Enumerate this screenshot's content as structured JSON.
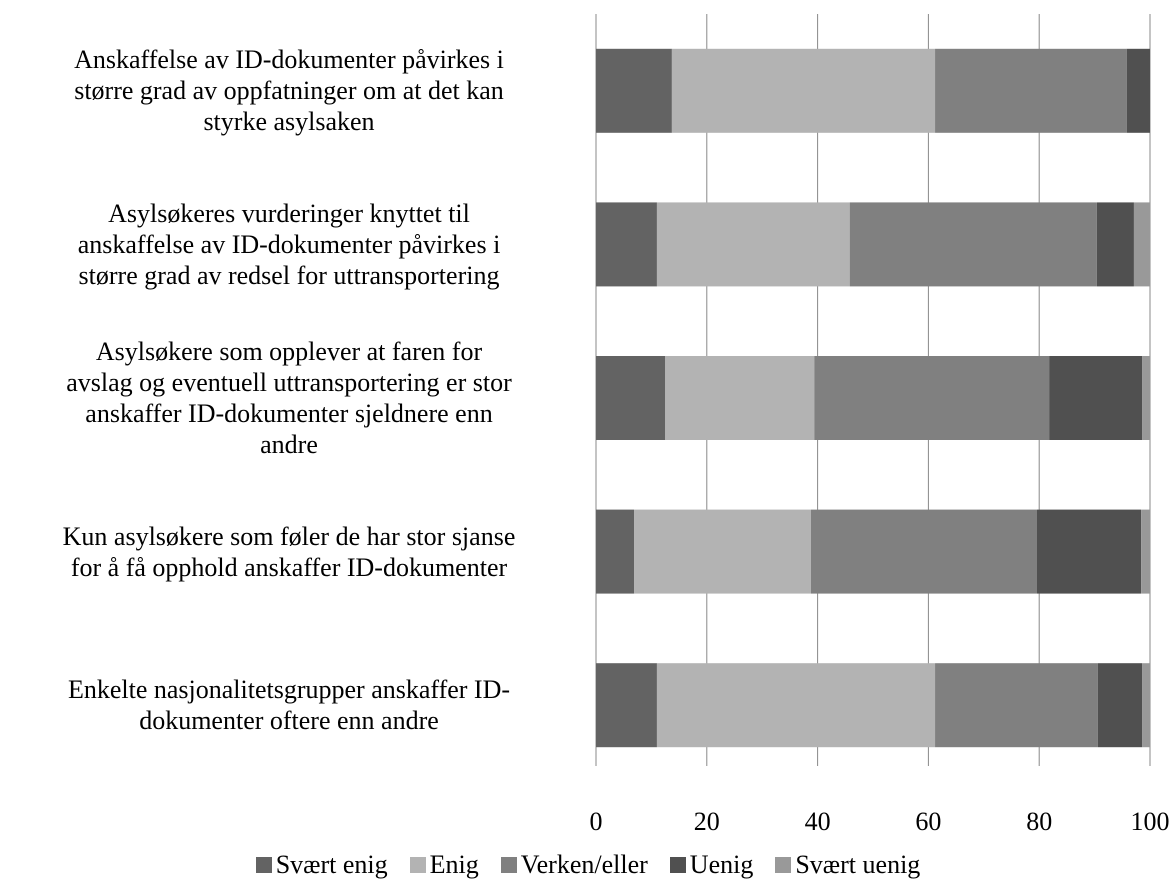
{
  "chart_data": {
    "type": "stacked_barh",
    "categories": [
      "Anskaffelse av ID-dokumenter påvirkes i\nstørre grad av oppfatninger om at det kan\nstyrke asylsaken",
      "Asylsøkeres vurderinger knyttet til\nanskaffelse av ID-dokumenter påvirkes i\nstørre grad av redsel for uttransportering",
      "Asylsøkere som opplever at faren for\navslag og eventuell uttransportering er stor\nanskaffer ID-dokumenter sjeldnere enn\nandre",
      "Kun asylsøkere som føler de har stor sjanse\nfor å få opphold anskaffer ID-dokumenter",
      "Enkelte nasjonalitetsgrupper anskaffer ID-\ndokumenter oftere enn andre"
    ],
    "series": [
      {
        "name": "Svært enig",
        "color": "#636363",
        "values": [
          13.7,
          11.0,
          12.5,
          6.9,
          11.0
        ]
      },
      {
        "name": "Enig",
        "color": "#b3b3b3",
        "values": [
          47.5,
          34.8,
          26.9,
          31.9,
          50.2
        ]
      },
      {
        "name": "Verken/eller",
        "color": "#808080",
        "values": [
          34.6,
          44.6,
          42.4,
          40.8,
          29.4
        ]
      },
      {
        "name": "Uenig",
        "color": "#505050",
        "values": [
          4.2,
          6.7,
          16.8,
          18.8,
          8.0
        ]
      },
      {
        "name": "Svært uenig",
        "color": "#999999",
        "values": [
          0,
          2.9,
          1.4,
          1.6,
          1.4
        ]
      }
    ],
    "xlim": [
      0,
      100
    ],
    "xticks": [
      0,
      20,
      40,
      60,
      80,
      100
    ],
    "grid": true,
    "legend": "bottom"
  }
}
